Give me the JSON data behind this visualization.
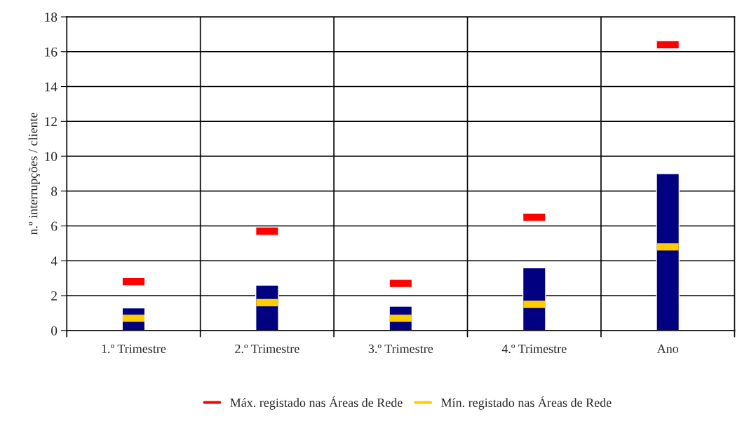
{
  "chart_data": {
    "type": "bar",
    "ylabel": "n.º interrupções / cliente",
    "categories": [
      "1.º Trimestre",
      "2.º Trimestre",
      "3.º Trimestre",
      "4.º Trimestre",
      "Ano"
    ],
    "series": [
      {
        "color": "#000080",
        "values": [
          1.3,
          2.6,
          1.4,
          3.6,
          9.0
        ]
      },
      {
        "type": "scatter",
        "marker": "square",
        "name": "Máx. registado nas Áreas de Rede",
        "color": "#ff0000",
        "values": [
          2.8,
          5.7,
          2.7,
          6.5,
          16.4
        ]
      },
      {
        "type": "scatter",
        "marker": "square",
        "name": "Mín. registado nas Áreas de Rede",
        "color": "#ffcc00",
        "values": [
          0.7,
          1.6,
          0.7,
          1.5,
          4.8
        ]
      }
    ],
    "ylim": [
      0,
      18
    ],
    "yticks": [
      0,
      2,
      4,
      6,
      8,
      10,
      12,
      14,
      16,
      18
    ],
    "grid": true,
    "legend": "bottom"
  }
}
